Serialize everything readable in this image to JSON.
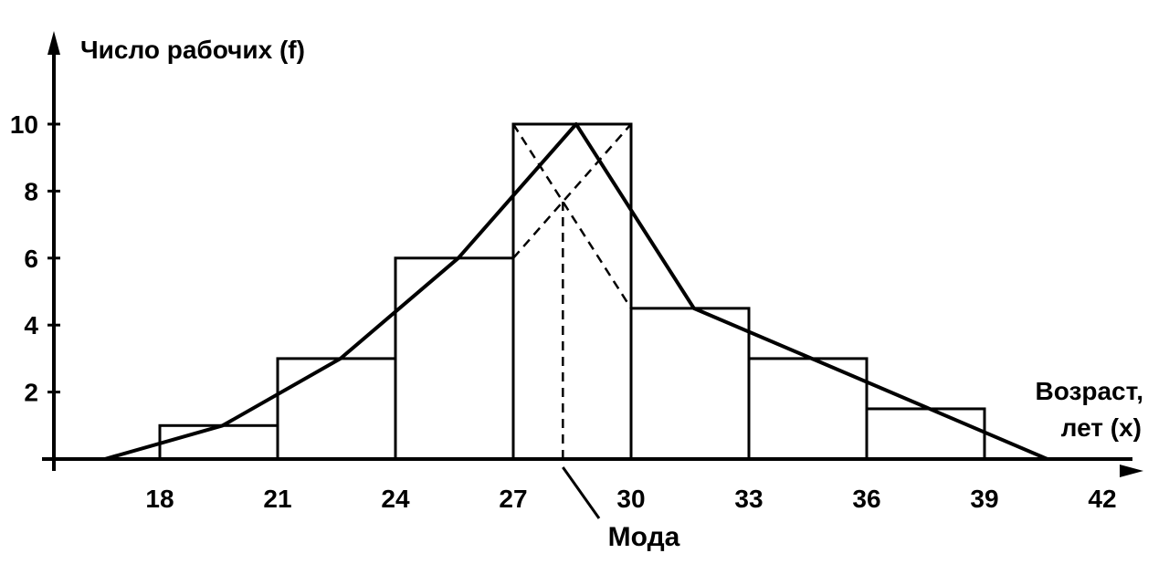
{
  "chart_data": {
    "type": "bar",
    "title": "",
    "ylabel": "Число рабочих (f)",
    "xlabel_line1": "Возраст,",
    "xlabel_line2": "лет (x)",
    "x_ticks": [
      "18",
      "21",
      "24",
      "27",
      "30",
      "33",
      "36",
      "39",
      "42"
    ],
    "y_ticks": [
      "2",
      "4",
      "6",
      "8",
      "10"
    ],
    "xlim": [
      15,
      42
    ],
    "ylim": [
      0,
      11
    ],
    "bins": [
      {
        "from": 18,
        "to": 21,
        "value": 1
      },
      {
        "from": 21,
        "to": 24,
        "value": 3
      },
      {
        "from": 24,
        "to": 27,
        "value": 6
      },
      {
        "from": 27,
        "to": 30,
        "value": 10
      },
      {
        "from": 30,
        "to": 33,
        "value": 4.5
      },
      {
        "from": 33,
        "to": 36,
        "value": 3
      },
      {
        "from": 36,
        "to": 39,
        "value": 1.5
      }
    ],
    "polygon": {
      "x": [
        16.6,
        19.6,
        22.6,
        25.6,
        28.6,
        31.6,
        34.6,
        37.6,
        40.6
      ],
      "y": [
        0,
        1,
        3,
        6,
        10,
        4.5,
        3,
        1.5,
        0
      ]
    },
    "mode": {
      "value": 28.5,
      "label": "Мода"
    },
    "grid": false,
    "legend": "none"
  }
}
